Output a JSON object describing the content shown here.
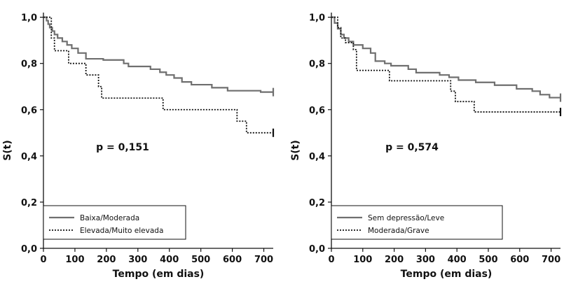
{
  "chart_data": [
    {
      "type": "line",
      "subtype": "kaplan-meier step",
      "xlabel": "Tempo (em dias)",
      "ylabel": "S(t)",
      "xlim": [
        0,
        730
      ],
      "ylim": [
        0,
        1.02
      ],
      "xticks": [
        0,
        100,
        200,
        300,
        400,
        500,
        600,
        700
      ],
      "yticks": [
        0.0,
        0.2,
        0.4,
        0.6,
        0.8,
        1.0
      ],
      "ytick_labels": [
        "0,0",
        "0,2",
        "0,4",
        "0,6",
        "0,8",
        "1,0"
      ],
      "xtick_labels": [
        "0",
        "100",
        "200",
        "300",
        "400",
        "500",
        "600",
        "700"
      ],
      "annotation": "p = 0,151",
      "legend_position": "bottom-left",
      "grid": false,
      "series": [
        {
          "name": "Baixa/Moderada",
          "style": "solid",
          "color": "#6f6f6f",
          "censor_end": true,
          "points": [
            [
              0,
              1.0
            ],
            [
              10,
              0.985
            ],
            [
              15,
              0.97
            ],
            [
              20,
              0.955
            ],
            [
              28,
              0.94
            ],
            [
              35,
              0.925
            ],
            [
              45,
              0.91
            ],
            [
              60,
              0.895
            ],
            [
              75,
              0.88
            ],
            [
              90,
              0.865
            ],
            [
              110,
              0.845
            ],
            [
              135,
              0.82
            ],
            [
              190,
              0.815
            ],
            [
              255,
              0.8
            ],
            [
              270,
              0.787
            ],
            [
              340,
              0.775
            ],
            [
              370,
              0.762
            ],
            [
              390,
              0.75
            ],
            [
              415,
              0.737
            ],
            [
              440,
              0.72
            ],
            [
              470,
              0.708
            ],
            [
              535,
              0.695
            ],
            [
              585,
              0.682
            ],
            [
              690,
              0.676
            ],
            [
              730,
              0.676
            ]
          ]
        },
        {
          "name": "Elevada/Muito elevada",
          "style": "dotted",
          "color": "#111111",
          "censor_end": true,
          "points": [
            [
              0,
              1.0
            ],
            [
              25,
              0.91
            ],
            [
              35,
              0.855
            ],
            [
              80,
              0.8
            ],
            [
              135,
              0.75
            ],
            [
              175,
              0.7
            ],
            [
              185,
              0.65
            ],
            [
              380,
              0.6
            ],
            [
              615,
              0.55
            ],
            [
              645,
              0.5
            ],
            [
              730,
              0.5
            ]
          ]
        }
      ]
    },
    {
      "type": "line",
      "subtype": "kaplan-meier step",
      "xlabel": "Tempo (em dias)",
      "ylabel": "S(t)",
      "xlim": [
        0,
        730
      ],
      "ylim": [
        0,
        1.02
      ],
      "xticks": [
        0,
        100,
        200,
        300,
        400,
        500,
        600,
        700
      ],
      "yticks": [
        0.0,
        0.2,
        0.4,
        0.6,
        0.8,
        1.0
      ],
      "ytick_labels": [
        "0,0",
        "0,2",
        "0,4",
        "0,6",
        "0,8",
        "1,0"
      ],
      "xtick_labels": [
        "0",
        "100",
        "200",
        "300",
        "400",
        "500",
        "600",
        "700"
      ],
      "annotation": "p = 0,574",
      "legend_position": "bottom-left",
      "grid": false,
      "series": [
        {
          "name": "Sem depressão/Leve",
          "style": "solid",
          "color": "#6f6f6f",
          "censor_end": true,
          "points": [
            [
              0,
              1.0
            ],
            [
              10,
              0.975
            ],
            [
              20,
              0.95
            ],
            [
              30,
              0.925
            ],
            [
              40,
              0.91
            ],
            [
              55,
              0.895
            ],
            [
              70,
              0.88
            ],
            [
              100,
              0.865
            ],
            [
              125,
              0.845
            ],
            [
              140,
              0.81
            ],
            [
              170,
              0.8
            ],
            [
              190,
              0.79
            ],
            [
              245,
              0.775
            ],
            [
              270,
              0.76
            ],
            [
              345,
              0.75
            ],
            [
              375,
              0.74
            ],
            [
              405,
              0.728
            ],
            [
              460,
              0.718
            ],
            [
              520,
              0.706
            ],
            [
              590,
              0.69
            ],
            [
              640,
              0.68
            ],
            [
              665,
              0.665
            ],
            [
              695,
              0.652
            ],
            [
              730,
              0.652
            ]
          ]
        },
        {
          "name": "Moderada/Grave",
          "style": "dotted",
          "color": "#111111",
          "censor_end": true,
          "points": [
            [
              0,
              1.0
            ],
            [
              20,
              0.955
            ],
            [
              30,
              0.91
            ],
            [
              45,
              0.89
            ],
            [
              70,
              0.86
            ],
            [
              80,
              0.77
            ],
            [
              185,
              0.725
            ],
            [
              380,
              0.68
            ],
            [
              395,
              0.635
            ],
            [
              455,
              0.59
            ],
            [
              730,
              0.59
            ]
          ]
        }
      ]
    }
  ]
}
